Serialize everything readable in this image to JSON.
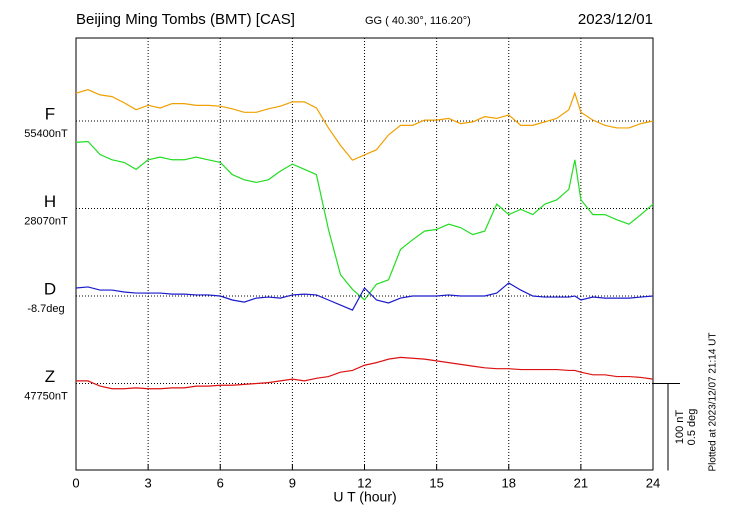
{
  "chart_data": {
    "type": "line",
    "title": "Beijing Ming Tombs (BMT)  [CAS]",
    "subtitle": "GG ( 40.30°, 116.20°)",
    "date": "2023/12/01",
    "x_label": "U T (hour)",
    "footnote": "Plotted at 2023/12/07 21:14 UT",
    "xlim": [
      0,
      24
    ],
    "xticks": [
      0,
      3,
      6,
      9,
      12,
      15,
      18,
      21,
      24
    ],
    "grid": true,
    "scale_bar": [
      {
        "value": 100,
        "label": "100 nT"
      },
      {
        "value": 0.5,
        "label": "0.5 deg"
      }
    ],
    "x": [
      0,
      0.5,
      1,
      1.5,
      2,
      2.5,
      3,
      3.5,
      4,
      4.5,
      5,
      5.5,
      6,
      6.5,
      7,
      7.5,
      8,
      8.5,
      9,
      9.5,
      10,
      10.5,
      11,
      11.5,
      12,
      12.5,
      13,
      13.5,
      14,
      14.5,
      15,
      15.5,
      16,
      16.5,
      17,
      17.5,
      18,
      18.5,
      19,
      19.5,
      20,
      20.5,
      20.75,
      21,
      21.5,
      22,
      22.5,
      23,
      23.5,
      24
    ],
    "series": [
      {
        "name": "F",
        "color": "#f0a000",
        "baseline": {
          "value": 55400,
          "label": "55400nT"
        },
        "values": [
          55432,
          55436,
          55430,
          55428,
          55421,
          55413,
          55418,
          55415,
          55420,
          55420,
          55418,
          55418,
          55417,
          55414,
          55410,
          55410,
          55414,
          55417,
          55422,
          55422,
          55415,
          55392,
          55372,
          55355,
          55361,
          55367,
          55384,
          55395,
          55395,
          55401,
          55401,
          55403,
          55397,
          55399,
          55405,
          55403,
          55407,
          55395,
          55395,
          55399,
          55403,
          55413,
          55432,
          55410,
          55401,
          55395,
          55392,
          55392,
          55397,
          55400
        ]
      },
      {
        "name": "H",
        "color": "#22dd22",
        "baseline": {
          "value": 28070,
          "label": "28070nT"
        },
        "values": [
          28146,
          28147,
          28132,
          28126,
          28123,
          28115,
          28126,
          28129,
          28126,
          28126,
          28129,
          28126,
          28123,
          28109,
          28103,
          28100,
          28103,
          28113,
          28121,
          28115,
          28109,
          28046,
          27994,
          27977,
          27965,
          27983,
          27988,
          28023,
          28034,
          28044,
          28046,
          28052,
          28048,
          28040,
          28044,
          28075,
          28063,
          28069,
          28063,
          28075,
          28080,
          28092,
          28126,
          28080,
          28063,
          28063,
          28057,
          28052,
          28063,
          28075
        ]
      },
      {
        "name": "D",
        "color": "#1a1acc",
        "baseline": {
          "value": -8.7,
          "label": "-8.7deg"
        },
        "values": [
          -8.654,
          -8.648,
          -8.666,
          -8.666,
          -8.677,
          -8.683,
          -8.683,
          -8.683,
          -8.689,
          -8.689,
          -8.694,
          -8.694,
          -8.7,
          -8.723,
          -8.735,
          -8.712,
          -8.706,
          -8.712,
          -8.694,
          -8.689,
          -8.694,
          -8.723,
          -8.752,
          -8.781,
          -8.654,
          -8.723,
          -8.74,
          -8.712,
          -8.7,
          -8.7,
          -8.7,
          -8.694,
          -8.7,
          -8.7,
          -8.7,
          -8.683,
          -8.625,
          -8.666,
          -8.7,
          -8.706,
          -8.706,
          -8.706,
          -8.7,
          -8.723,
          -8.706,
          -8.712,
          -8.712,
          -8.712,
          -8.706,
          -8.7
        ]
      },
      {
        "name": "Z",
        "color": "#dd1111",
        "baseline": {
          "value": 47750,
          "label": "47750nT"
        },
        "values": [
          47753,
          47753,
          47747,
          47744,
          47744,
          47745,
          47744,
          47744,
          47745,
          47745,
          47747,
          47747,
          47748,
          47748,
          47749,
          47750,
          47751,
          47753,
          47755,
          47753,
          47756,
          47758,
          47763,
          47765,
          47771,
          47774,
          47778,
          47780,
          47779,
          47778,
          47776,
          47774,
          47772,
          47770,
          47768,
          47767,
          47767,
          47766,
          47766,
          47766,
          47766,
          47765,
          47765,
          47763,
          47760,
          47760,
          47758,
          47758,
          47757,
          47755
        ]
      }
    ]
  }
}
